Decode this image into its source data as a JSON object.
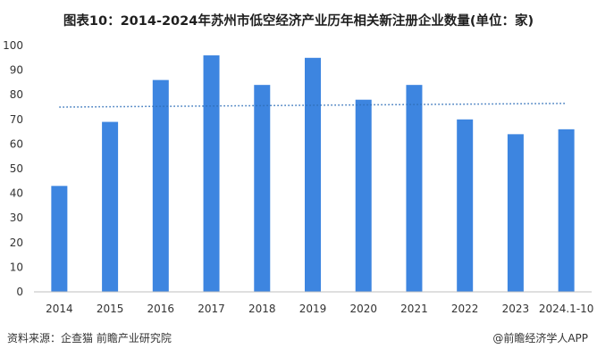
{
  "chart_data": {
    "type": "bar",
    "title": "图表10：2014-2024年苏州市低空经济产业历年相关新注册企业数量(单位：家)",
    "categories": [
      "2014",
      "2015",
      "2016",
      "2017",
      "2018",
      "2019",
      "2020",
      "2021",
      "2022",
      "2023",
      "2024.1-10"
    ],
    "values": [
      43,
      69,
      86,
      96,
      84,
      95,
      78,
      84,
      70,
      64,
      66
    ],
    "ylim": [
      0,
      100
    ],
    "yticks": [
      0,
      10,
      20,
      30,
      40,
      50,
      60,
      70,
      80,
      90,
      100
    ],
    "trendline": {
      "style": "dotted",
      "start": 75,
      "end": 76.5
    },
    "grid": false,
    "colors": {
      "bar": "#3d85e0",
      "trend": "#2f6fb8",
      "axis": "#bfbfbf"
    }
  },
  "footer": {
    "source": "资料来源：企查猫 前瞻产业研究院",
    "brand": "@前瞻经济学人APP"
  }
}
